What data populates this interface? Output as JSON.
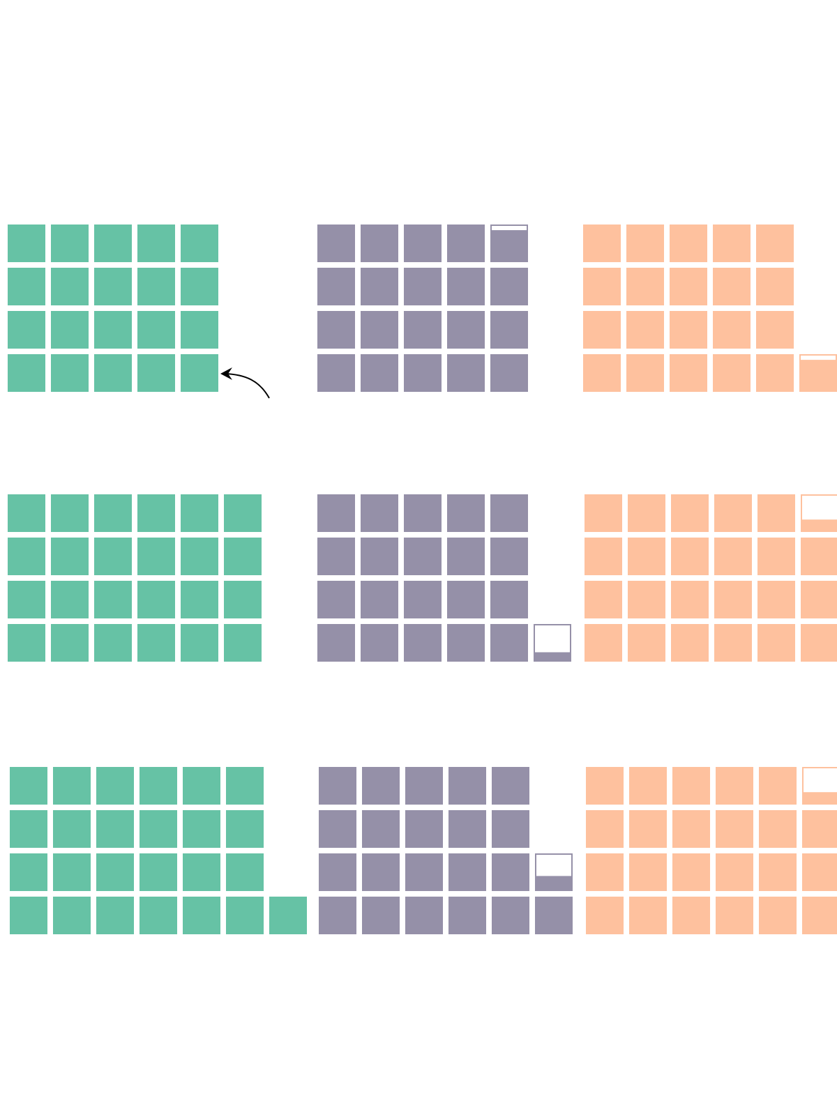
{
  "colors": {
    "green": "#66c2a5",
    "purple": "#9590a8",
    "orange": "#fec19e",
    "background": "#ffffff",
    "arrow": "#000000"
  },
  "chart_data": {
    "type": "waffle",
    "title": "",
    "unit_per_square": 1,
    "rows": [
      {
        "groups": [
          {
            "color_key": "green",
            "value": 20
          },
          {
            "color_key": "purple",
            "value": 19.85
          },
          {
            "color_key": "orange",
            "value": 20.85
          }
        ],
        "annotation": "arrow-pointing-to-last-green-square"
      },
      {
        "groups": [
          {
            "color_key": "green",
            "value": 24
          },
          {
            "color_key": "purple",
            "value": 20.25
          },
          {
            "color_key": "orange",
            "value": 23.33
          }
        ]
      },
      {
        "groups": [
          {
            "color_key": "green",
            "value": 25
          },
          {
            "color_key": "purple",
            "value": 21.4
          },
          {
            "color_key": "orange",
            "value": 23.33
          }
        ]
      }
    ]
  }
}
